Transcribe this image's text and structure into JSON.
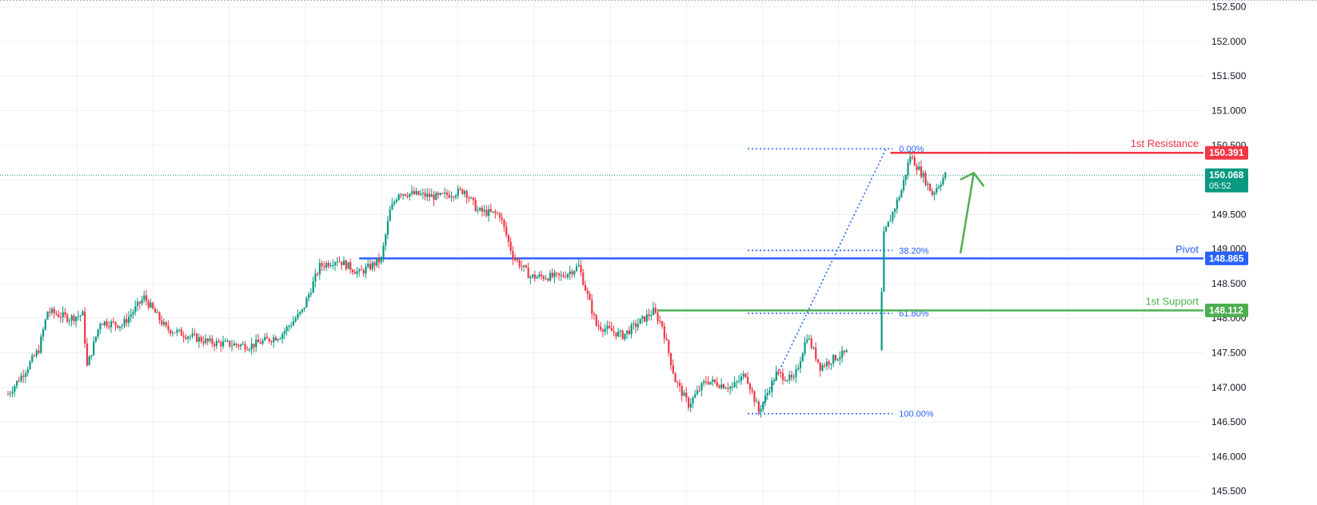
{
  "colors": {
    "background": "#ffffff",
    "grid": "#eef0f4",
    "up": "#089981",
    "down": "#f23645",
    "resistance": "#f23645",
    "pivot": "#2962ff",
    "support": "#4caf50",
    "fib": "#2962ff",
    "arrow": "#4caf50",
    "current": "#089981"
  },
  "chart_data": {
    "type": "candlestick",
    "y_axis": {
      "position": "right",
      "ylim": [
        145.3,
        152.6
      ],
      "ticks": [
        "152.500",
        "152.000",
        "151.500",
        "151.000",
        "150.500",
        "150.000",
        "149.500",
        "149.000",
        "148.500",
        "148.000",
        "147.500",
        "147.000",
        "146.500",
        "146.000",
        "145.500"
      ]
    },
    "grid": true,
    "ohlc_path": [
      {
        "i": 0,
        "p": 146.9
      },
      {
        "i": 8,
        "p": 147.25
      },
      {
        "i": 14,
        "p": 147.55
      },
      {
        "i": 18,
        "p": 148.1
      },
      {
        "i": 28,
        "p": 148.0
      },
      {
        "i": 34,
        "p": 148.05
      },
      {
        "i": 36,
        "p": 147.3
      },
      {
        "i": 42,
        "p": 147.95
      },
      {
        "i": 52,
        "p": 147.9
      },
      {
        "i": 62,
        "p": 148.3
      },
      {
        "i": 72,
        "p": 147.85
      },
      {
        "i": 92,
        "p": 147.65
      },
      {
        "i": 110,
        "p": 147.6
      },
      {
        "i": 124,
        "p": 147.75
      },
      {
        "i": 134,
        "p": 148.1
      },
      {
        "i": 142,
        "p": 148.75
      },
      {
        "i": 150,
        "p": 148.85
      },
      {
        "i": 160,
        "p": 148.65
      },
      {
        "i": 170,
        "p": 148.85
      },
      {
        "i": 174,
        "p": 149.55
      },
      {
        "i": 178,
        "p": 149.82
      },
      {
        "i": 196,
        "p": 149.75
      },
      {
        "i": 208,
        "p": 149.85
      },
      {
        "i": 214,
        "p": 149.55
      },
      {
        "i": 224,
        "p": 149.5
      },
      {
        "i": 230,
        "p": 148.9
      },
      {
        "i": 238,
        "p": 148.6
      },
      {
        "i": 252,
        "p": 148.6
      },
      {
        "i": 260,
        "p": 148.75
      },
      {
        "i": 268,
        "p": 147.9
      },
      {
        "i": 280,
        "p": 147.75
      },
      {
        "i": 290,
        "p": 148.0
      },
      {
        "i": 294,
        "p": 148.1
      },
      {
        "i": 298,
        "p": 147.9
      },
      {
        "i": 304,
        "p": 147.1
      },
      {
        "i": 310,
        "p": 146.75
      },
      {
        "i": 318,
        "p": 147.1
      },
      {
        "i": 330,
        "p": 147.0
      },
      {
        "i": 336,
        "p": 147.2
      },
      {
        "i": 342,
        "p": 146.65
      },
      {
        "i": 350,
        "p": 147.2
      },
      {
        "i": 358,
        "p": 147.1
      },
      {
        "i": 364,
        "p": 147.75
      },
      {
        "i": 370,
        "p": 147.3
      },
      {
        "i": 378,
        "p": 147.45
      },
      {
        "i": 382,
        "p": 147.5
      },
      {
        "i": 384,
        "p": 149.2
      },
      {
        "i": 392,
        "p": 149.85
      },
      {
        "i": 396,
        "p": 150.35
      },
      {
        "i": 402,
        "p": 150.05
      },
      {
        "i": 406,
        "p": 149.8
      },
      {
        "i": 412,
        "p": 150.07
      }
    ],
    "gap": {
      "after_index": 382,
      "bars": 15
    },
    "fibonacci": {
      "levels": [
        {
          "ratio": 0.0,
          "price": 150.45,
          "label": "0.00%"
        },
        {
          "ratio": 0.382,
          "price": 148.98,
          "label": "38.20%"
        },
        {
          "ratio": 0.618,
          "price": 148.07,
          "label": "61.80%"
        },
        {
          "ratio": 1.0,
          "price": 146.62,
          "label": "100.00%"
        }
      ],
      "trend_from": {
        "bar": 342,
        "price": 146.62
      },
      "trend_to": {
        "bar": 400,
        "price": 150.45
      }
    },
    "horizontal_lines": [
      {
        "name": "1st Resistance",
        "price": 150.391,
        "label": "150.391",
        "color": "#f23645",
        "from_bar": 402
      },
      {
        "name": "Pivot",
        "price": 148.865,
        "label": "148.865",
        "color": "#2962ff",
        "from_bar": 160
      },
      {
        "name": "1st Support",
        "price": 148.112,
        "label": "148.112",
        "color": "#4caf50",
        "from_bar": 296
      }
    ],
    "current": {
      "price": 150.068,
      "label": "150.068",
      "countdown": "05:52"
    },
    "projection_arrow": {
      "from_bar": 434,
      "from_price": 148.95,
      "to_bar": 440,
      "to_price": 150.1
    }
  }
}
